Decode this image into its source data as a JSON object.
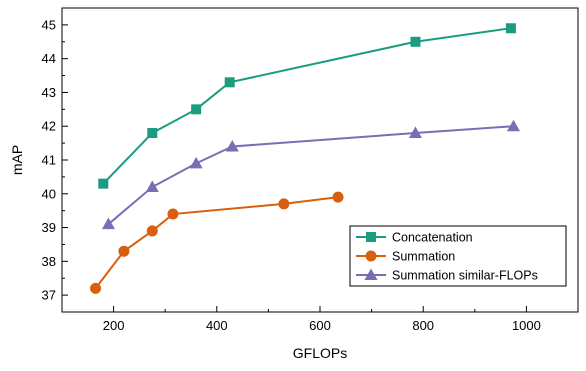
{
  "chart_data": {
    "type": "line",
    "xlabel": "GFLOPs",
    "ylabel": "mAP",
    "xlim": [
      100,
      1100
    ],
    "ylim": [
      36.5,
      45.5
    ],
    "x_ticks": [
      200,
      400,
      600,
      800,
      1000
    ],
    "y_ticks": [
      37,
      38,
      39,
      40,
      41,
      42,
      43,
      44,
      45
    ],
    "grid": false,
    "legend_position": "lower-right",
    "series": [
      {
        "name": "Concatenation",
        "color": "#1a9c80",
        "marker": "square",
        "x": [
          180,
          275,
          360,
          425,
          785,
          970
        ],
        "y": [
          40.3,
          41.8,
          42.5,
          43.3,
          44.5,
          44.9
        ]
      },
      {
        "name": "Summation",
        "color": "#d95f0e",
        "marker": "circle",
        "x": [
          165,
          220,
          275,
          315,
          530,
          635
        ],
        "y": [
          37.2,
          38.3,
          38.9,
          39.4,
          39.7,
          39.9
        ]
      },
      {
        "name": "Summation similar-FLOPs",
        "color": "#7570b3",
        "marker": "triangle",
        "x": [
          190,
          275,
          360,
          430,
          785,
          975
        ],
        "y": [
          39.1,
          40.2,
          40.9,
          41.4,
          41.8,
          42.0
        ]
      }
    ]
  }
}
